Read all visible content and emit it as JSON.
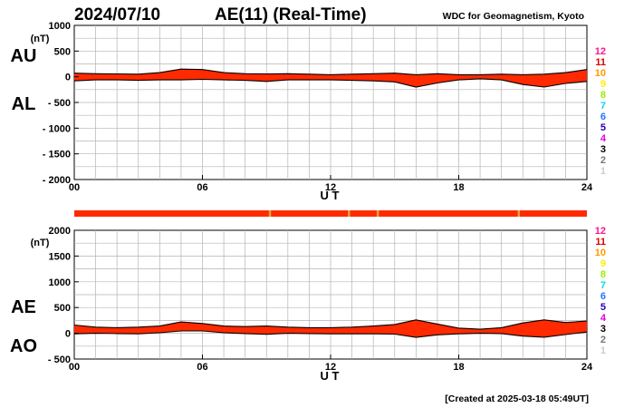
{
  "header": {
    "date": "2024/07/10",
    "title": "AE(11) (Real-Time)",
    "source": "WDC for Geomagnetism, Kyoto",
    "created": "[Created at 2025-03-18 05:49UT]"
  },
  "colors": {
    "fill": "#ff2a00",
    "line": "#000000",
    "grid": "#b4b4b4",
    "bar_flag": "#e8a040"
  },
  "station_scale": [
    {
      "label": "12",
      "color": "#ff1493"
    },
    {
      "label": "11",
      "color": "#dd0000"
    },
    {
      "label": "10",
      "color": "#ff9900"
    },
    {
      "label": "9",
      "color": "#ffee00"
    },
    {
      "label": "8",
      "color": "#99ee00"
    },
    {
      "label": "7",
      "color": "#00dddd"
    },
    {
      "label": "6",
      "color": "#1e77ff"
    },
    {
      "label": "5",
      "color": "#2200bb"
    },
    {
      "label": "4",
      "color": "#dd00dd"
    },
    {
      "label": "3",
      "color": "#000000"
    },
    {
      "label": "2",
      "color": "#777777"
    },
    {
      "label": "1",
      "color": "#cccccc"
    }
  ],
  "station_bar": {
    "base_color": "#ff2a00",
    "marks_ut": [
      9.15,
      12.85,
      14.2,
      20.8
    ]
  },
  "chart_data": [
    {
      "type": "area",
      "unit": "(nT)",
      "xlabel": "U T",
      "ylim": [
        -2000,
        1000
      ],
      "xlim": [
        0,
        24
      ],
      "x_ticks": [
        "00",
        "06",
        "12",
        "18",
        "24"
      ],
      "y_ticks": [
        "1000",
        "500",
        "0",
        "- 500",
        "- 1000",
        "- 1500",
        "- 2000"
      ],
      "upper_name": "AU",
      "lower_name": "AL",
      "grid": true,
      "x": [
        0,
        1,
        2,
        3,
        4,
        5,
        6,
        7,
        8,
        9,
        10,
        11,
        12,
        13,
        14,
        15,
        16,
        17,
        18,
        19,
        20,
        21,
        22,
        23,
        24
      ],
      "series": [
        {
          "name": "AU",
          "values": [
            70,
            60,
            55,
            50,
            80,
            150,
            140,
            80,
            60,
            55,
            60,
            50,
            40,
            50,
            60,
            70,
            40,
            60,
            40,
            40,
            50,
            40,
            50,
            80,
            140
          ]
        },
        {
          "name": "AL",
          "values": [
            -80,
            -60,
            -60,
            -70,
            -60,
            -60,
            -50,
            -60,
            -70,
            -90,
            -60,
            -60,
            -60,
            -70,
            -80,
            -100,
            -200,
            -120,
            -60,
            -40,
            -60,
            -150,
            -200,
            -130,
            -90
          ]
        }
      ]
    },
    {
      "type": "area",
      "unit": "(nT)",
      "xlabel": "U T",
      "ylim": [
        -500,
        2000
      ],
      "xlim": [
        0,
        24
      ],
      "x_ticks": [
        "00",
        "06",
        "12",
        "18",
        "24"
      ],
      "y_ticks": [
        "2000",
        "1500",
        "1000",
        "500",
        "0",
        "- 500"
      ],
      "upper_name": "AE",
      "lower_name": "AO",
      "grid": true,
      "x": [
        0,
        1,
        2,
        3,
        4,
        5,
        6,
        7,
        8,
        9,
        10,
        11,
        12,
        13,
        14,
        15,
        16,
        17,
        18,
        19,
        20,
        21,
        22,
        23,
        24
      ],
      "series": [
        {
          "name": "AE",
          "values": [
            160,
            120,
            110,
            120,
            140,
            220,
            190,
            140,
            130,
            140,
            120,
            110,
            110,
            120,
            140,
            170,
            260,
            180,
            100,
            80,
            110,
            200,
            260,
            210,
            240
          ]
        },
        {
          "name": "AO",
          "values": [
            -10,
            0,
            -5,
            -10,
            10,
            45,
            45,
            10,
            -5,
            -20,
            0,
            -5,
            -10,
            -10,
            -10,
            -15,
            -80,
            -30,
            -10,
            0,
            -5,
            -55,
            -75,
            -25,
            25
          ]
        }
      ]
    }
  ]
}
